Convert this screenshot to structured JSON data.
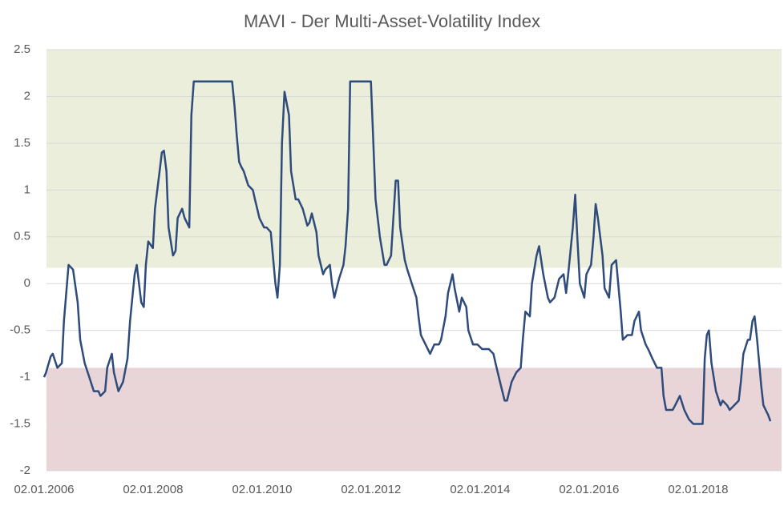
{
  "chart_data": {
    "type": "line",
    "title": "MAVI - Der Multi-Asset-Volatility Index",
    "x": [
      "2006-01-02",
      "2006-01-15",
      "2006-02-15",
      "2006-03-01",
      "2006-04-01",
      "2006-05-01",
      "2006-05-15",
      "2006-06-15",
      "2006-07-15",
      "2006-08-15",
      "2006-09-01",
      "2006-10-01",
      "2006-11-01",
      "2006-12-01",
      "2007-01-01",
      "2007-01-15",
      "2007-02-15",
      "2007-03-01",
      "2007-04-01",
      "2007-04-15",
      "2007-05-15",
      "2007-06-15",
      "2007-07-15",
      "2007-08-01",
      "2007-09-01",
      "2007-09-15",
      "2007-10-15",
      "2007-11-01",
      "2007-11-15",
      "2007-12-01",
      "2008-01-01",
      "2008-01-15",
      "2008-02-15",
      "2008-03-01",
      "2008-03-15",
      "2008-04-01",
      "2008-04-15",
      "2008-05-15",
      "2008-06-01",
      "2008-06-15",
      "2008-07-15",
      "2008-08-01",
      "2008-09-01",
      "2008-09-15",
      "2008-10-01",
      "2009-02-15",
      "2009-06-15",
      "2009-07-01",
      "2009-07-15",
      "2009-08-01",
      "2009-08-15",
      "2009-09-01",
      "2009-10-01",
      "2009-11-01",
      "2009-11-15",
      "2009-12-15",
      "2010-01-15",
      "2010-02-01",
      "2010-03-01",
      "2010-04-01",
      "2010-04-15",
      "2010-05-01",
      "2010-05-15",
      "2010-06-01",
      "2010-07-01",
      "2010-07-15",
      "2010-08-15",
      "2010-09-01",
      "2010-10-01",
      "2010-11-01",
      "2010-11-15",
      "2010-12-01",
      "2011-01-01",
      "2011-01-15",
      "2011-02-15",
      "2011-03-01",
      "2011-04-01",
      "2011-04-15",
      "2011-05-01",
      "2011-06-01",
      "2011-07-01",
      "2011-07-15",
      "2011-08-01",
      "2011-08-15",
      "2012-01-01",
      "2012-01-15",
      "2012-02-01",
      "2012-03-01",
      "2012-04-01",
      "2012-04-15",
      "2012-05-15",
      "2012-06-15",
      "2012-07-01",
      "2012-07-15",
      "2012-08-15",
      "2012-09-01",
      "2012-10-01",
      "2012-11-01",
      "2012-11-15",
      "2012-12-01",
      "2013-01-01",
      "2013-02-01",
      "2013-03-01",
      "2013-04-01",
      "2013-04-15",
      "2013-05-15",
      "2013-06-01",
      "2013-07-01",
      "2013-07-15",
      "2013-08-15",
      "2013-09-01",
      "2013-10-01",
      "2013-10-15",
      "2013-11-15",
      "2013-12-15",
      "2014-01-15",
      "2014-02-01",
      "2014-03-01",
      "2014-04-01",
      "2014-04-15",
      "2014-05-15",
      "2014-06-15",
      "2014-07-01",
      "2014-08-01",
      "2014-09-01",
      "2014-10-01",
      "2014-10-15",
      "2014-11-01",
      "2014-12-01",
      "2014-12-15",
      "2015-01-15",
      "2015-02-01",
      "2015-03-01",
      "2015-04-01",
      "2015-04-15",
      "2015-05-15",
      "2015-06-15",
      "2015-07-15",
      "2015-08-01",
      "2015-08-15",
      "2015-09-15",
      "2015-10-01",
      "2015-10-15",
      "2015-11-01",
      "2015-12-01",
      "2015-12-15",
      "2016-01-15",
      "2016-02-01",
      "2016-02-15",
      "2016-03-01",
      "2016-04-01",
      "2016-04-15",
      "2016-05-15",
      "2016-06-01",
      "2016-07-01",
      "2016-08-01",
      "2016-08-15",
      "2016-09-15",
      "2016-10-15",
      "2016-11-01",
      "2016-12-01",
      "2016-12-15",
      "2017-01-15",
      "2017-02-01",
      "2017-03-01",
      "2017-04-01",
      "2017-05-01",
      "2017-05-15",
      "2017-06-01",
      "2017-07-15",
      "2017-08-01",
      "2017-09-01",
      "2017-10-01",
      "2017-11-01",
      "2017-12-01",
      "2018-01-01",
      "2018-02-01",
      "2018-02-15",
      "2018-03-01",
      "2018-03-15",
      "2018-04-01",
      "2018-05-01",
      "2018-06-01",
      "2018-06-15",
      "2018-07-15",
      "2018-08-01",
      "2018-09-01",
      "2018-10-01",
      "2018-10-15",
      "2018-11-01",
      "2018-12-01",
      "2018-12-15",
      "2019-01-01",
      "2019-01-15",
      "2019-02-01",
      "2019-03-01",
      "2019-03-15",
      "2019-04-15",
      "2019-05-01"
    ],
    "series": [
      {
        "color": "#2f4b7c",
        "values": [
          -1.0,
          -0.95,
          -0.78,
          -0.75,
          -0.9,
          -0.85,
          -0.4,
          0.2,
          0.15,
          -0.2,
          -0.6,
          -0.85,
          -1.0,
          -1.15,
          -1.15,
          -1.2,
          -1.15,
          -0.9,
          -0.75,
          -0.95,
          -1.15,
          -1.05,
          -0.8,
          -0.4,
          0.1,
          0.2,
          -0.2,
          -0.25,
          0.2,
          0.45,
          0.38,
          0.8,
          1.2,
          1.4,
          1.42,
          1.2,
          0.6,
          0.3,
          0.35,
          0.7,
          0.8,
          0.7,
          0.6,
          1.8,
          2.16,
          2.16,
          2.16,
          1.9,
          1.6,
          1.3,
          1.25,
          1.2,
          1.05,
          1.0,
          0.9,
          0.7,
          0.6,
          0.6,
          0.55,
          0.0,
          -0.15,
          0.2,
          1.5,
          2.05,
          1.8,
          1.2,
          0.9,
          0.9,
          0.8,
          0.62,
          0.65,
          0.75,
          0.55,
          0.3,
          0.1,
          0.15,
          0.2,
          0.0,
          -0.15,
          0.05,
          0.2,
          0.4,
          0.8,
          2.16,
          2.16,
          1.6,
          0.9,
          0.5,
          0.2,
          0.2,
          0.3,
          1.1,
          1.1,
          0.6,
          0.25,
          0.15,
          0.0,
          -0.15,
          -0.35,
          -0.55,
          -0.65,
          -0.75,
          -0.65,
          -0.65,
          -0.6,
          -0.35,
          -0.1,
          0.1,
          -0.05,
          -0.3,
          -0.15,
          -0.25,
          -0.5,
          -0.65,
          -0.65,
          -0.7,
          -0.7,
          -0.7,
          -0.75,
          -0.85,
          -1.05,
          -1.25,
          -1.25,
          -1.05,
          -0.95,
          -0.9,
          -0.6,
          -0.3,
          -0.35,
          0.0,
          0.3,
          0.4,
          0.1,
          -0.15,
          -0.2,
          -0.15,
          0.05,
          0.1,
          -0.1,
          0.1,
          0.6,
          0.95,
          0.5,
          0.0,
          -0.15,
          0.1,
          0.2,
          0.5,
          0.85,
          0.7,
          0.3,
          -0.05,
          -0.15,
          0.2,
          0.25,
          -0.3,
          -0.6,
          -0.55,
          -0.55,
          -0.4,
          -0.3,
          -0.5,
          -0.65,
          -0.7,
          -0.8,
          -0.9,
          -0.9,
          -1.2,
          -1.35,
          -1.35,
          -1.3,
          -1.2,
          -1.35,
          -1.45,
          -1.5,
          -1.5,
          -1.5,
          -0.8,
          -0.55,
          -0.5,
          -0.85,
          -1.15,
          -1.3,
          -1.25,
          -1.3,
          -1.35,
          -1.3,
          -1.25,
          -1.05,
          -0.75,
          -0.6,
          -0.6,
          -0.4,
          -0.35,
          -0.6,
          -1.1,
          -1.3,
          -1.4,
          -1.47
        ]
      }
    ],
    "bands": [
      {
        "from": 0.17,
        "to": 2.5,
        "color": "#ebeedb"
      },
      {
        "from": -2,
        "to": -0.9,
        "color": "#e9d5d7"
      }
    ],
    "xlim": [
      "2006-01-02",
      "2019-07-15"
    ],
    "xticks": [
      {
        "value": "2006-01-02",
        "label": "02.01.2006"
      },
      {
        "value": "2008-01-02",
        "label": "02.01.2008"
      },
      {
        "value": "2010-01-02",
        "label": "02.01.2010"
      },
      {
        "value": "2012-01-02",
        "label": "02.01.2012"
      },
      {
        "value": "2014-01-02",
        "label": "02.01.2014"
      },
      {
        "value": "2016-01-02",
        "label": "02.01.2016"
      },
      {
        "value": "2018-01-02",
        "label": "02.01.2018"
      }
    ],
    "ylim": [
      -2,
      2.5
    ],
    "yticks": [
      2.5,
      2,
      1.5,
      1,
      0.5,
      0,
      -0.5,
      -1,
      -1.5,
      -2
    ],
    "grid": true
  }
}
